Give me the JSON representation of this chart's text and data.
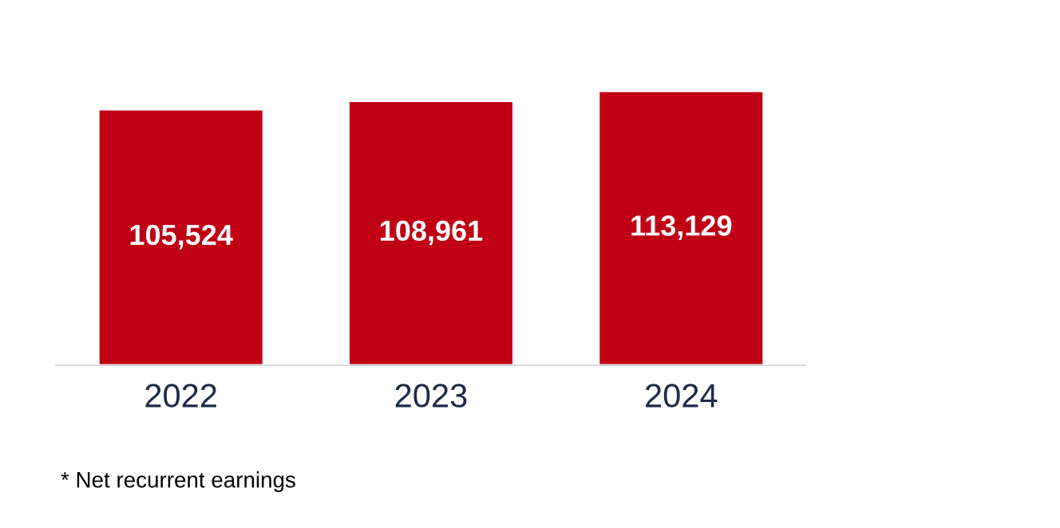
{
  "chart_data": {
    "type": "bar",
    "categories": [
      "2022",
      "2023",
      "2024"
    ],
    "values": [
      105524,
      108961,
      113129
    ],
    "color": "#c00014",
    "data_labels": true,
    "tick_labels": "x",
    "grid": false,
    "legend": false,
    "value_labels": [
      "105,524",
      "108,961",
      "113,129"
    ],
    "annotations": [
      "* Net recurrent earnings"
    ]
  }
}
